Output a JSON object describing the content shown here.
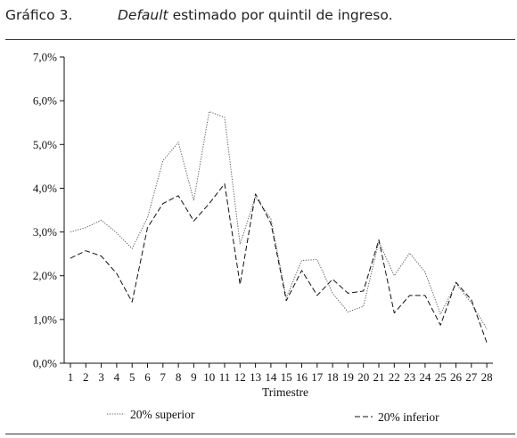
{
  "header": {
    "figure_number": "Gráfico 3.",
    "title_italic": "Default",
    "title_rest": " estimado por quintil de ingreso."
  },
  "chart_data": {
    "type": "line",
    "title": "Default estimado por quintil de ingreso.",
    "xlabel": "Trimestre",
    "ylabel": "",
    "x": [
      1,
      2,
      3,
      4,
      5,
      6,
      7,
      8,
      9,
      10,
      11,
      12,
      13,
      14,
      15,
      16,
      17,
      18,
      19,
      20,
      21,
      22,
      23,
      24,
      25,
      26,
      27,
      28
    ],
    "ylim": [
      0,
      7
    ],
    "yticks": [
      0,
      1,
      2,
      3,
      4,
      5,
      6,
      7
    ],
    "ytick_labels": [
      "0,0%",
      "1,0%",
      "2,0%",
      "3,0%",
      "4,0%",
      "5,0%",
      "6,0%",
      "7,0%"
    ],
    "series": [
      {
        "name": "20% superior",
        "style": "dotted",
        "color": "#555555",
        "values": [
          3.0,
          3.1,
          3.27,
          2.98,
          2.62,
          3.33,
          4.63,
          5.05,
          3.72,
          5.75,
          5.62,
          2.72,
          3.8,
          3.3,
          1.5,
          2.35,
          2.37,
          1.6,
          1.17,
          1.3,
          2.78,
          2.0,
          2.52,
          2.08,
          1.12,
          1.82,
          1.38,
          0.78
        ]
      },
      {
        "name": "20% inferior",
        "style": "dashed",
        "color": "#111111",
        "values": [
          2.4,
          2.57,
          2.45,
          2.05,
          1.4,
          3.1,
          3.65,
          3.83,
          3.25,
          3.65,
          4.1,
          1.8,
          3.87,
          3.2,
          1.43,
          2.12,
          1.55,
          1.92,
          1.6,
          1.65,
          2.82,
          1.15,
          1.55,
          1.55,
          0.87,
          1.85,
          1.45,
          0.47
        ]
      }
    ],
    "grid": false,
    "legend": "bottom"
  }
}
